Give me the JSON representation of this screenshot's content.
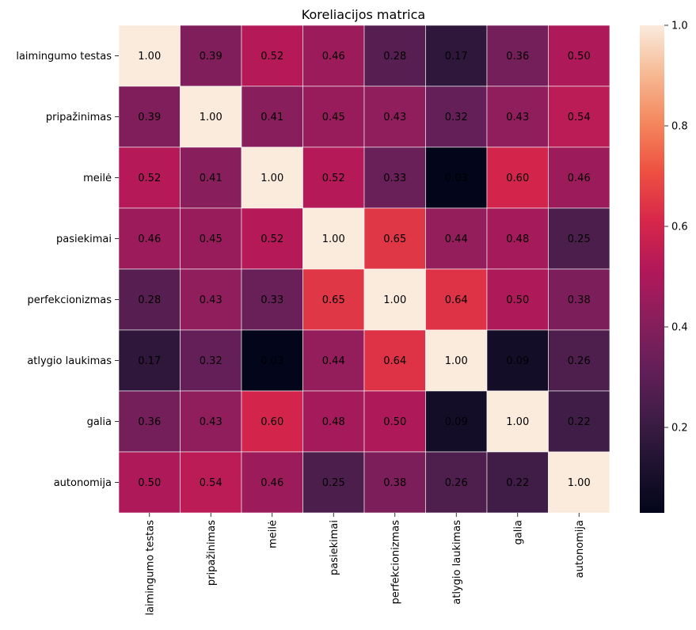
{
  "chart_data": {
    "type": "heatmap",
    "title": "Koreliacijos matrica",
    "xlabel": "",
    "ylabel": "",
    "labels": [
      "laimingumo testas",
      "pripažinimas",
      "meilė",
      "pasiekimai",
      "perfekcionizmas",
      "atlygio laukimas",
      "galia",
      "autonomija"
    ],
    "matrix": [
      [
        1.0,
        0.39,
        0.52,
        0.46,
        0.28,
        0.17,
        0.36,
        0.5
      ],
      [
        0.39,
        1.0,
        0.41,
        0.45,
        0.43,
        0.32,
        0.43,
        0.54
      ],
      [
        0.52,
        0.41,
        1.0,
        0.52,
        0.33,
        0.03,
        0.6,
        0.46
      ],
      [
        0.46,
        0.45,
        0.52,
        1.0,
        0.65,
        0.44,
        0.48,
        0.25
      ],
      [
        0.28,
        0.43,
        0.33,
        0.65,
        1.0,
        0.64,
        0.5,
        0.38
      ],
      [
        0.17,
        0.32,
        0.03,
        0.44,
        0.64,
        1.0,
        0.09,
        0.26
      ],
      [
        0.36,
        0.43,
        0.6,
        0.48,
        0.5,
        0.09,
        1.0,
        0.22
      ],
      [
        0.5,
        0.54,
        0.46,
        0.25,
        0.38,
        0.26,
        0.22,
        1.0
      ]
    ],
    "annotation_format": "0.00",
    "colormap": "rocket",
    "vmin": 0.03,
    "vmax": 1.0,
    "colorbar_ticks": [
      0.2,
      0.4,
      0.6,
      0.8,
      1.0
    ],
    "colorbar_tick_labels": [
      "0.2",
      "0.4",
      "0.6",
      "0.8",
      "1.0"
    ],
    "cell_line_color": "#ffffff"
  }
}
